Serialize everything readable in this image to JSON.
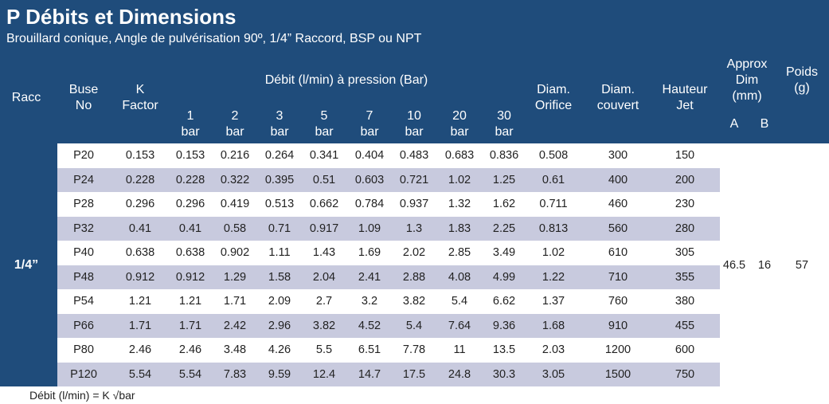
{
  "header": {
    "title": "P Débits et Dimensions",
    "subtitle": "Brouillard conique, Angle de pulvérisation 90º, 1/4” Raccord, BSP ou NPT"
  },
  "table": {
    "columns": {
      "racc": "Racc",
      "nozzle": "Buse No",
      "k": "K Factor",
      "flow_group": "Débit (l/min) à pression (Bar)",
      "pressures": [
        "1 bar",
        "2 bar",
        "3 bar",
        "5 bar",
        "7 bar",
        "10 bar",
        "20 bar",
        "30 bar"
      ],
      "orifice": "Diam. Orifice",
      "coverage": "Diam. couvert",
      "height": "Hauteur Jet",
      "approx": "Approx Dim (mm)",
      "approx_a": "A",
      "approx_b": "B",
      "weight": "Poids (g)"
    },
    "racc": "1/4”",
    "rows": [
      [
        "P20",
        0.153,
        0.153,
        0.216,
        0.264,
        0.341,
        0.404,
        0.483,
        0.683,
        0.836,
        0.508,
        300,
        150
      ],
      [
        "P24",
        0.228,
        0.228,
        0.322,
        0.395,
        0.51,
        0.603,
        0.721,
        1.02,
        1.25,
        0.61,
        400,
        200
      ],
      [
        "P28",
        0.296,
        0.296,
        0.419,
        0.513,
        0.662,
        0.784,
        0.937,
        1.32,
        1.62,
        0.711,
        460,
        230
      ],
      [
        "P32",
        0.41,
        0.41,
        0.58,
        0.71,
        0.917,
        1.09,
        1.3,
        1.83,
        2.25,
        0.813,
        560,
        280
      ],
      [
        "P40",
        0.638,
        0.638,
        0.902,
        1.11,
        1.43,
        1.69,
        2.02,
        2.85,
        3.49,
        1.02,
        610,
        305
      ],
      [
        "P48",
        0.912,
        0.912,
        1.29,
        1.58,
        2.04,
        2.41,
        2.88,
        4.08,
        4.99,
        1.22,
        710,
        355
      ],
      [
        "P54",
        1.21,
        1.21,
        1.71,
        2.09,
        2.7,
        3.2,
        3.82,
        5.4,
        6.62,
        1.37,
        760,
        380
      ],
      [
        "P66",
        1.71,
        1.71,
        2.42,
        2.96,
        3.82,
        4.52,
        5.4,
        7.64,
        9.36,
        1.68,
        910,
        455
      ],
      [
        "P80",
        2.46,
        2.46,
        3.48,
        4.26,
        5.5,
        6.51,
        7.78,
        11,
        13.5,
        2.03,
        1200,
        600
      ],
      [
        "P120",
        5.54,
        5.54,
        7.83,
        9.59,
        12.4,
        14.7,
        17.5,
        24.8,
        30.3,
        3.05,
        1500,
        750
      ]
    ],
    "approx_a": 46.5,
    "approx_b": 16,
    "weight": 57
  },
  "footer": "Débit (l/min) = K √bar"
}
